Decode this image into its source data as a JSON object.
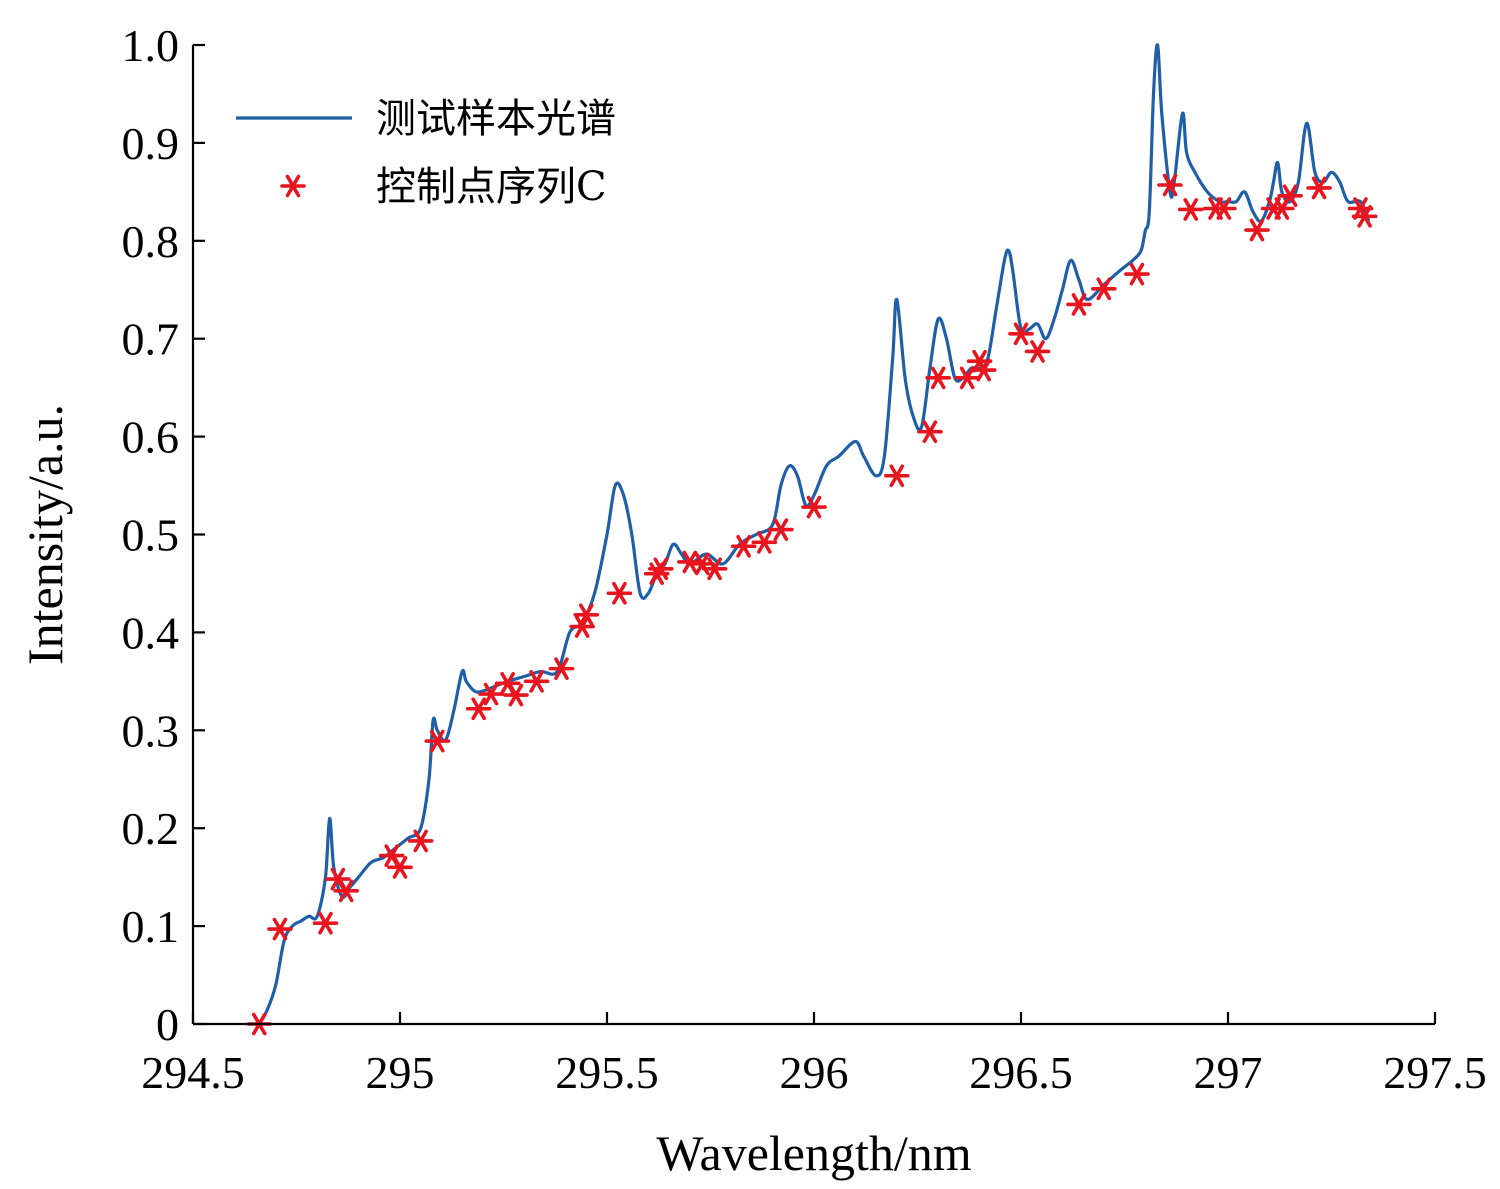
{
  "chart_data": {
    "type": "line",
    "title": "",
    "xlabel": "Wavelength/nm",
    "ylabel": "Intensity/a.u.",
    "xlim": [
      294.5,
      297.5
    ],
    "ylim": [
      0,
      1.0
    ],
    "xticks": [
      294.5,
      295,
      295.5,
      296,
      296.5,
      297,
      297.5
    ],
    "xtick_labels": [
      "294.5",
      "295",
      "295.5",
      "296",
      "296.5",
      "297",
      "297.5"
    ],
    "yticks": [
      0,
      0.1,
      0.2,
      0.3,
      0.4,
      0.5,
      0.6,
      0.7,
      0.8,
      0.9,
      1.0
    ],
    "ytick_labels": [
      "0",
      "0.1",
      "0.2",
      "0.3",
      "0.4",
      "0.5",
      "0.6",
      "0.7",
      "0.8",
      "0.9",
      "1.0"
    ],
    "grid": false,
    "legend_position": "top-left",
    "series": [
      {
        "name": "测试样本光谱",
        "kind": "line",
        "color": "#1f5fa8",
        "x": [
          294.66,
          294.68,
          294.7,
          294.72,
          294.74,
          294.76,
          294.78,
          294.8,
          294.82,
          294.83,
          294.84,
          294.86,
          294.88,
          294.9,
          294.93,
          294.96,
          294.99,
          295.02,
          295.05,
          295.07,
          295.08,
          295.09,
          295.11,
          295.13,
          295.15,
          295.16,
          295.18,
          295.2,
          295.23,
          295.26,
          295.3,
          295.34,
          295.38,
          295.41,
          295.44,
          295.47,
          295.5,
          295.52,
          295.54,
          295.56,
          295.58,
          295.6,
          295.62,
          295.64,
          295.66,
          295.68,
          295.7,
          295.74,
          295.78,
          295.82,
          295.86,
          295.9,
          295.92,
          295.94,
          295.96,
          295.98,
          296.0,
          296.03,
          296.06,
          296.1,
          296.12,
          296.15,
          296.17,
          296.19,
          296.2,
          296.22,
          296.24,
          296.26,
          296.28,
          296.3,
          296.32,
          296.34,
          296.36,
          296.38,
          296.4,
          296.42,
          296.44,
          296.46,
          296.47,
          296.48,
          296.5,
          296.52,
          296.54,
          296.56,
          296.58,
          296.6,
          296.62,
          296.64,
          296.66,
          296.7,
          296.74,
          296.77,
          296.79,
          296.8,
          296.81,
          296.82,
          296.83,
          296.84,
          296.86,
          296.87,
          296.89,
          296.9,
          296.92,
          296.95,
          296.98,
          297.0,
          297.02,
          297.04,
          297.06,
          297.08,
          297.1,
          297.11,
          297.12,
          297.13,
          297.15,
          297.17,
          297.19,
          297.21,
          297.23,
          297.25,
          297.27,
          297.29,
          297.32,
          297.34
        ],
        "y": [
          0.0,
          0.015,
          0.04,
          0.085,
          0.1,
          0.105,
          0.11,
          0.11,
          0.15,
          0.21,
          0.16,
          0.13,
          0.14,
          0.15,
          0.165,
          0.17,
          0.18,
          0.19,
          0.2,
          0.25,
          0.31,
          0.3,
          0.29,
          0.32,
          0.36,
          0.35,
          0.34,
          0.34,
          0.345,
          0.35,
          0.355,
          0.36,
          0.36,
          0.4,
          0.41,
          0.44,
          0.5,
          0.55,
          0.54,
          0.5,
          0.44,
          0.44,
          0.46,
          0.47,
          0.49,
          0.48,
          0.47,
          0.48,
          0.47,
          0.49,
          0.5,
          0.51,
          0.55,
          0.57,
          0.56,
          0.53,
          0.54,
          0.57,
          0.58,
          0.595,
          0.58,
          0.56,
          0.58,
          0.68,
          0.74,
          0.66,
          0.62,
          0.61,
          0.67,
          0.72,
          0.7,
          0.66,
          0.66,
          0.67,
          0.67,
          0.68,
          0.73,
          0.78,
          0.79,
          0.77,
          0.71,
          0.71,
          0.715,
          0.7,
          0.72,
          0.75,
          0.78,
          0.76,
          0.74,
          0.755,
          0.77,
          0.78,
          0.79,
          0.81,
          0.83,
          0.95,
          1.0,
          0.93,
          0.85,
          0.86,
          0.93,
          0.89,
          0.87,
          0.85,
          0.84,
          0.84,
          0.84,
          0.85,
          0.83,
          0.82,
          0.84,
          0.86,
          0.88,
          0.85,
          0.84,
          0.86,
          0.92,
          0.87,
          0.86,
          0.87,
          0.86,
          0.84,
          0.84,
          0.82
        ]
      },
      {
        "name": "控制点序列C",
        "kind": "scatter",
        "marker": "asterisk",
        "color": "#e8141e",
        "x": [
          294.66,
          294.71,
          294.82,
          294.85,
          294.87,
          294.98,
          295.0,
          295.05,
          295.09,
          295.19,
          295.22,
          295.26,
          295.28,
          295.33,
          295.39,
          295.44,
          295.45,
          295.53,
          295.62,
          295.63,
          295.7,
          295.73,
          295.76,
          295.83,
          295.88,
          295.92,
          296.0,
          296.2,
          296.28,
          296.3,
          296.37,
          296.4,
          296.41,
          296.5,
          296.54,
          296.64,
          296.7,
          296.78,
          296.86,
          296.91,
          296.97,
          296.99,
          297.07,
          297.11,
          297.13,
          297.15,
          297.22,
          297.32,
          297.33
        ],
        "y": [
          0.0,
          0.097,
          0.103,
          0.148,
          0.136,
          0.172,
          0.16,
          0.187,
          0.289,
          0.322,
          0.337,
          0.348,
          0.336,
          0.35,
          0.363,
          0.406,
          0.418,
          0.44,
          0.46,
          0.465,
          0.472,
          0.47,
          0.465,
          0.488,
          0.492,
          0.505,
          0.528,
          0.56,
          0.605,
          0.66,
          0.66,
          0.677,
          0.668,
          0.705,
          0.687,
          0.735,
          0.751,
          0.766,
          0.857,
          0.832,
          0.833,
          0.833,
          0.811,
          0.833,
          0.833,
          0.846,
          0.854,
          0.833,
          0.825
        ]
      }
    ]
  }
}
